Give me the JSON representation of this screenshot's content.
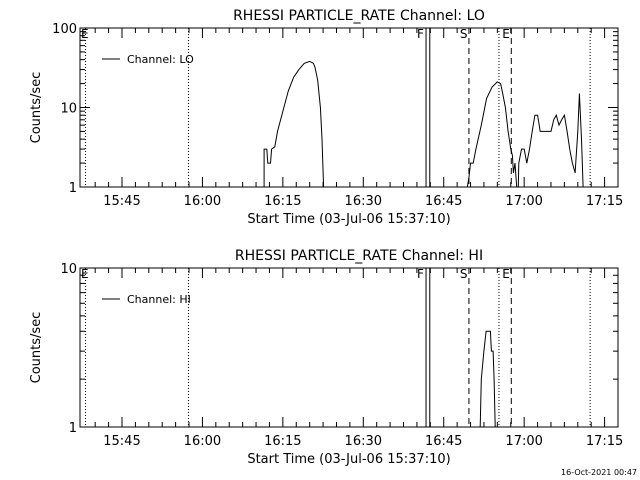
{
  "footer_timestamp": "16-Oct-2021 00:47",
  "chart_data": [
    {
      "type": "line",
      "title": "RHESSI PARTICLE_RATE Channel: LO",
      "xlabel": "Start Time (03-Jul-06 15:37:10)",
      "ylabel": "Counts/sec",
      "yscale": "log",
      "ylim": [
        1,
        100
      ],
      "xlim_minutes": [
        15.78,
        77.8
      ],
      "x_ticks": [
        {
          "m": 45,
          "label": "15:45"
        },
        {
          "m": 60,
          "label": "16:00"
        },
        {
          "m": 75,
          "label": "16:15"
        },
        {
          "m": 90,
          "label": "16:30"
        },
        {
          "m": 105,
          "label": "16:45"
        },
        {
          "m": 120,
          "label": "17:00"
        },
        {
          "m": 135,
          "label": "17:15"
        }
      ],
      "y_ticks": [
        {
          "v": 1,
          "label": "1"
        },
        {
          "v": 10,
          "label": "10"
        },
        {
          "v": 100,
          "label": "100"
        }
      ],
      "legend": {
        "label": "Channel: LO",
        "position": "top-left"
      },
      "markers": [
        {
          "m": 38.2,
          "style": "dotted",
          "label": "E"
        },
        {
          "m": 57.4,
          "style": "dotted",
          "label": ""
        },
        {
          "m": 101.7,
          "style": "solid",
          "label": "F"
        },
        {
          "m": 102.4,
          "style": "solid",
          "label": ""
        },
        {
          "m": 109.7,
          "style": "dashed",
          "label": "S"
        },
        {
          "m": 115.3,
          "style": "dotted",
          "label": ""
        },
        {
          "m": 117.6,
          "style": "dashed",
          "label": "E"
        },
        {
          "m": 132.3,
          "style": "dotted",
          "label": ""
        }
      ],
      "series": [
        {
          "segments": [
            [
              [
                71.5,
                1
              ],
              [
                71.5,
                3
              ],
              [
                72.0,
                3
              ],
              [
                72.2,
                2
              ],
              [
                72.7,
                2
              ],
              [
                72.9,
                3
              ],
              [
                73.5,
                3.2
              ],
              [
                74.0,
                5
              ],
              [
                75.0,
                9
              ],
              [
                76.0,
                16
              ],
              [
                77.0,
                24
              ],
              [
                78.0,
                30
              ],
              [
                79.0,
                36
              ],
              [
                80.0,
                38
              ],
              [
                80.7,
                36
              ],
              [
                81.0,
                32
              ],
              [
                81.5,
                22
              ],
              [
                82.0,
                10
              ],
              [
                82.3,
                4
              ],
              [
                82.6,
                1
              ]
            ],
            [
              [
                109.4,
                1
              ],
              [
                109.7,
                1.3
              ],
              [
                110.0,
                2
              ],
              [
                110.5,
                2
              ],
              [
                111.0,
                3
              ],
              [
                112.0,
                6
              ],
              [
                113.0,
                13
              ],
              [
                114.0,
                18
              ],
              [
                115.0,
                21
              ],
              [
                115.6,
                20
              ],
              [
                116.0,
                15
              ],
              [
                116.5,
                10
              ],
              [
                117.0,
                5
              ],
              [
                117.5,
                3
              ],
              [
                117.8,
                2.5
              ],
              [
                118.0,
                1.5
              ],
              [
                118.3,
                2
              ],
              [
                118.6,
                1
              ]
            ],
            [
              [
                118.9,
                1
              ],
              [
                119.0,
                2
              ],
              [
                119.5,
                3
              ],
              [
                120.0,
                3
              ],
              [
                120.5,
                2
              ],
              [
                121.0,
                3
              ],
              [
                121.5,
                5
              ],
              [
                122.0,
                8
              ],
              [
                122.5,
                8
              ],
              [
                123.0,
                5
              ],
              [
                124.0,
                5
              ],
              [
                125.0,
                5
              ],
              [
                125.5,
                7
              ],
              [
                126.0,
                8
              ],
              [
                126.5,
                6
              ],
              [
                127.0,
                7
              ],
              [
                127.5,
                8
              ],
              [
                128.0,
                5
              ],
              [
                128.5,
                3
              ],
              [
                129.0,
                2
              ],
              [
                129.5,
                1.5
              ],
              [
                130.0,
                5
              ],
              [
                130.3,
                15
              ],
              [
                130.7,
                4
              ],
              [
                131.0,
                1
              ]
            ]
          ]
        }
      ]
    },
    {
      "type": "line",
      "title": "RHESSI PARTICLE_RATE Channel: HI",
      "xlabel": "Start Time (03-Jul-06 15:37:10)",
      "ylabel": "Counts/sec",
      "yscale": "log",
      "ylim": [
        1,
        10
      ],
      "xlim_minutes": [
        15.78,
        77.8
      ],
      "x_ticks": [
        {
          "m": 45,
          "label": "15:45"
        },
        {
          "m": 60,
          "label": "16:00"
        },
        {
          "m": 75,
          "label": "16:15"
        },
        {
          "m": 90,
          "label": "16:30"
        },
        {
          "m": 105,
          "label": "16:45"
        },
        {
          "m": 120,
          "label": "17:00"
        },
        {
          "m": 135,
          "label": "17:15"
        }
      ],
      "y_ticks": [
        {
          "v": 1,
          "label": "1"
        },
        {
          "v": 10,
          "label": "10"
        }
      ],
      "legend": {
        "label": "Channel: HI",
        "position": "top-left"
      },
      "markers": [
        {
          "m": 38.2,
          "style": "dotted",
          "label": "E"
        },
        {
          "m": 57.4,
          "style": "dotted",
          "label": ""
        },
        {
          "m": 101.7,
          "style": "solid",
          "label": "F"
        },
        {
          "m": 102.4,
          "style": "solid",
          "label": ""
        },
        {
          "m": 109.7,
          "style": "dashed",
          "label": "S"
        },
        {
          "m": 115.3,
          "style": "dotted",
          "label": ""
        },
        {
          "m": 117.6,
          "style": "dashed",
          "label": "E"
        },
        {
          "m": 132.3,
          "style": "dotted",
          "label": ""
        }
      ],
      "series": [
        {
          "segments": [
            [
              [
                111.8,
                1
              ],
              [
                112.0,
                2
              ],
              [
                112.5,
                3
              ],
              [
                112.9,
                4
              ],
              [
                113.7,
                4
              ],
              [
                113.9,
                3
              ],
              [
                114.2,
                3
              ],
              [
                114.4,
                2
              ],
              [
                114.6,
                1
              ]
            ]
          ]
        }
      ]
    }
  ]
}
